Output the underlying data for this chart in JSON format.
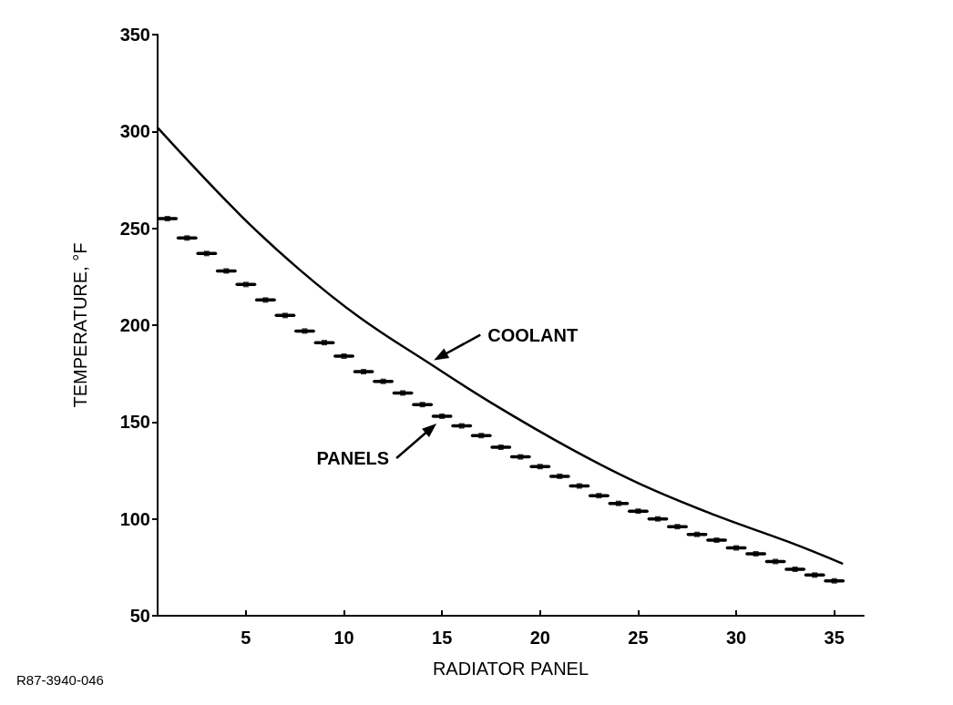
{
  "chart_data": {
    "type": "line",
    "xlabel": "RADIATOR PANEL",
    "ylabel": "TEMPERATURE, °F",
    "xlim": [
      0.5,
      36.5
    ],
    "xticks": [
      5,
      10,
      15,
      20,
      25,
      30,
      35
    ],
    "ylim": [
      50,
      350
    ],
    "yticks": [
      50,
      100,
      150,
      200,
      250,
      300,
      350
    ],
    "grid": false,
    "marker": "none",
    "series": [
      {
        "name": "COOLANT",
        "color": "#000000",
        "x": [
          0.5,
          4.7,
          7.7,
          10.8,
          14.4,
          17.5,
          21.6,
          25.1,
          28.9,
          32.7,
          35.4
        ],
        "values": [
          302,
          257,
          229,
          204,
          180,
          160,
          136,
          118,
          102,
          88,
          77
        ]
      },
      {
        "name": "PANELS",
        "type": "scatter",
        "marker": "square",
        "color": "#000000",
        "x": [
          1,
          2,
          3,
          4,
          5,
          6,
          7,
          8,
          9,
          10,
          11,
          12,
          13,
          14,
          15,
          16,
          17,
          18,
          19,
          20,
          21,
          22,
          23,
          24,
          25,
          26,
          27,
          28,
          29,
          30,
          31,
          32,
          33,
          34,
          35
        ],
        "values": [
          255,
          245,
          237,
          228,
          221,
          213,
          205,
          197,
          191,
          184,
          176,
          171,
          165,
          159,
          153,
          148,
          143,
          137,
          132,
          127,
          122,
          117,
          112,
          108,
          104,
          100,
          96,
          92,
          89,
          85,
          82,
          78,
          74,
          71,
          68
        ],
        "xerrors": [
          0.45,
          0.45,
          0.45,
          0.45,
          0.45,
          0.45,
          0.45,
          0.45,
          0.45,
          0.45,
          0.45,
          0.45,
          0.45,
          0.45,
          0.45,
          0.45,
          0.45,
          0.45,
          0.45,
          0.45,
          0.45,
          0.45,
          0.45,
          0.45,
          0.45,
          0.45,
          0.45,
          0.45,
          0.45,
          0.45,
          0.45,
          0.45,
          0.45,
          0.45,
          0.45
        ]
      }
    ],
    "annotations": [
      "R87-3940-046"
    ]
  }
}
